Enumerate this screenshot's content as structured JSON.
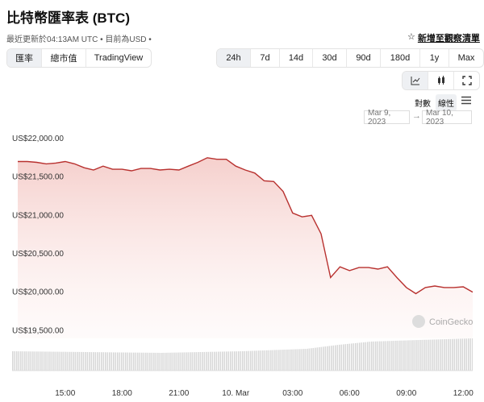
{
  "header": {
    "title": "比特幣匯率表 (BTC)",
    "subtitle": "最近更新於04:13AM UTC • 目前為USD •",
    "watchlist": "新增至觀察清單"
  },
  "tabs": [
    "匯率",
    "總市值",
    "TradingView"
  ],
  "ranges": [
    "24h",
    "7d",
    "14d",
    "30d",
    "90d",
    "180d",
    "1y",
    "Max"
  ],
  "scale_options": [
    "對數",
    "線性"
  ],
  "date_range": {
    "from": "Mar 9, 2023",
    "to": "Mar 10, 2023"
  },
  "watermark": "CoinGecko",
  "chart_data": {
    "type": "line",
    "color": "#b8312f",
    "categories": [
      null,
      null,
      null,
      null,
      null,
      "15:00",
      null,
      null,
      null,
      null,
      null,
      "18:00",
      null,
      null,
      null,
      null,
      null,
      "21:00",
      null,
      null,
      null,
      null,
      null,
      "10. Mar",
      null,
      null,
      null,
      null,
      null,
      "03:00",
      null,
      null,
      null,
      null,
      null,
      "06:00",
      null,
      null,
      null,
      null,
      null,
      "09:00",
      null,
      null,
      null,
      null,
      null,
      "12:00",
      null
    ],
    "values": [
      21700,
      21700,
      21690,
      21670,
      21680,
      21700,
      21670,
      21620,
      21590,
      21640,
      21600,
      21600,
      21580,
      21610,
      21610,
      21590,
      21600,
      21590,
      21640,
      21690,
      21750,
      21730,
      21730,
      21640,
      21590,
      21550,
      21450,
      21440,
      21310,
      21030,
      20980,
      21000,
      20760,
      20190,
      20330,
      20280,
      20320,
      20320,
      20300,
      20330,
      20190,
      20060,
      19980,
      20060,
      20080,
      20060,
      20060,
      20070,
      20000
    ],
    "ylim": [
      19000,
      22125
    ],
    "yticks": [
      {
        "value": 19500,
        "label": "US$19,500.00"
      },
      {
        "value": 20000,
        "label": "US$20,000.00"
      },
      {
        "value": 20500,
        "label": "US$20,500.00"
      },
      {
        "value": 21000,
        "label": "US$21,000.00"
      },
      {
        "value": 21500,
        "label": "US$21,500.00"
      },
      {
        "value": 22000,
        "label": "US$22,000.00"
      }
    ],
    "grid": false
  }
}
